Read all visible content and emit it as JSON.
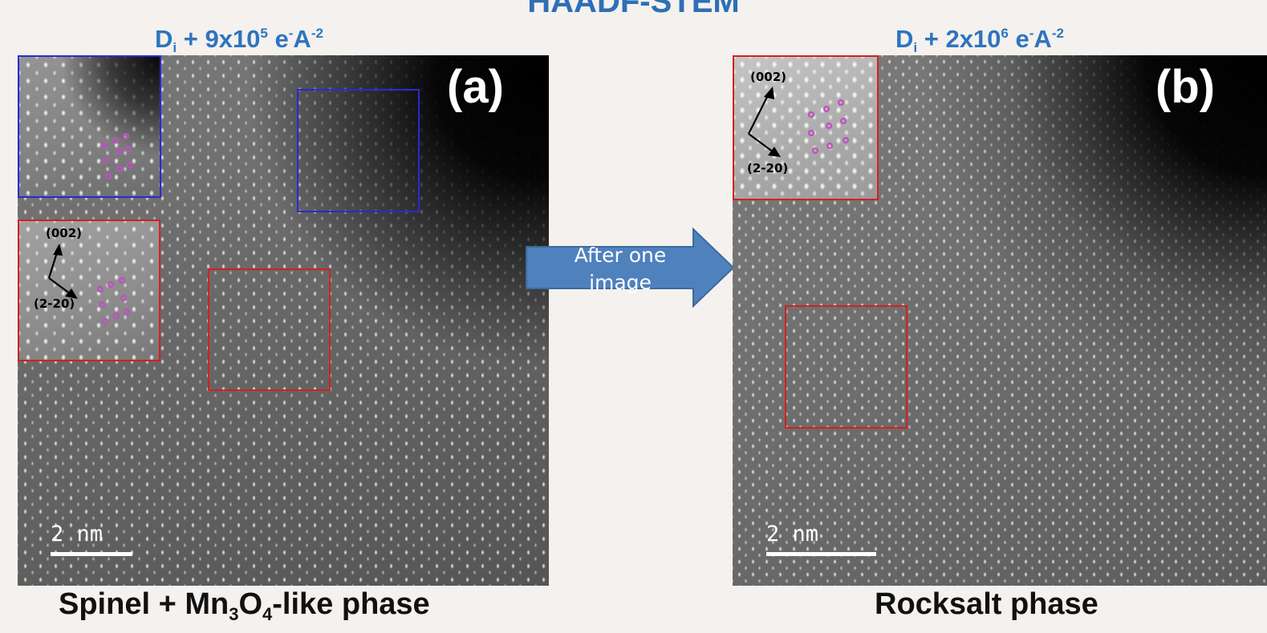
{
  "title": "HAADF-STEM",
  "panels": [
    {
      "dose": {
        "prefix": "D",
        "sub": "i",
        "mid": " + 9x10",
        "sup1": "5",
        "unit": " e",
        "sup2": "-",
        "unit2": "A",
        "sup3": "-2"
      },
      "label": "(a)",
      "scalebar": "2 nm",
      "inset_axes": {
        "a": "(002)",
        "b": "(2-20)"
      },
      "caption": {
        "before": "Spinel + Mn",
        "sub1": "3",
        "mid": "O",
        "sub2": "4",
        "after": "-like phase"
      },
      "colors": {
        "frame_top": "#2a2ad0",
        "frame_bottom": "#d32020"
      }
    },
    {
      "dose": {
        "prefix": "D",
        "sub": "i",
        "mid": " + 2x10",
        "sup1": "6",
        "unit": " e",
        "sup2": "-",
        "unit2": "A",
        "sup3": "-2"
      },
      "label": "(b)",
      "scalebar": "2 nm",
      "inset_axes": {
        "a": "(002)",
        "b": "(2-20)"
      },
      "caption": {
        "text": "Rocksalt phase"
      },
      "colors": {
        "frame": "#d32020"
      }
    }
  ],
  "arrow": {
    "line1": "After one",
    "line2": "image",
    "color": "#4f81bd"
  },
  "atom_marker_color": "#c050c0"
}
